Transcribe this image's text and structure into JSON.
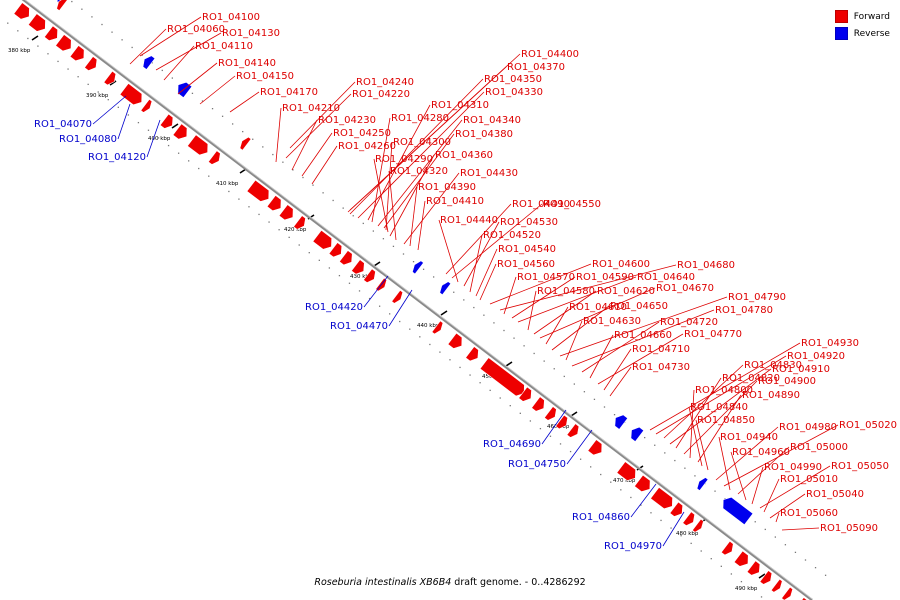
{
  "colors": {
    "forward": "#ee0000",
    "reverse": "#0000ee",
    "backbone": "#808080",
    "text_forward": "#dd0000",
    "text_reverse": "#0000cc"
  },
  "legend": [
    {
      "label": "Forward",
      "color": "#ee0000"
    },
    {
      "label": "Reverse",
      "color": "#0000ee"
    }
  ],
  "caption": {
    "organism": "Roseburia intestinalis XB6B4",
    "suffix": " draft genome. - 0..4286292"
  },
  "ticks": [
    "380 kbp",
    "390 kbp",
    "400 kbp",
    "410 kbp",
    "420 kbp",
    "430 kbp",
    "440 kbp",
    "450 kbp",
    "460 kbp",
    "470 kbp",
    "480 kbp",
    "490 kbp"
  ],
  "forward_genes": [
    "RO1_04100",
    "RO1_04060",
    "RO1_04130",
    "RO1_04110",
    "RO1_04140",
    "RO1_04150",
    "RO1_04170",
    "RO1_04240",
    "RO1_04220",
    "RO1_04210",
    "RO1_04230",
    "RO1_04250",
    "RO1_04260",
    "RO1_04400",
    "RO1_04370",
    "RO1_04350",
    "RO1_04330",
    "RO1_04310",
    "RO1_04280",
    "RO1_04340",
    "RO1_04380",
    "RO1_04300",
    "RO1_04290",
    "RO1_04360",
    "RO1_04320",
    "RO1_04430",
    "RO1_04390",
    "RO1_04410",
    "RO1_04490",
    "RO1_04550",
    "RO1_04440",
    "RO1_04530",
    "RO1_04520",
    "RO1_04540",
    "RO1_04560",
    "RO1_04600",
    "RO1_04680",
    "RO1_04570",
    "RO1_04590",
    "RO1_04640",
    "RO1_04580",
    "RO1_04620",
    "RO1_04670",
    "RO1_04610",
    "RO1_04650",
    "RO1_04790",
    "RO1_04630",
    "RO1_04780",
    "RO1_04720",
    "RO1_04660",
    "RO1_04770",
    "RO1_04710",
    "RO1_04730",
    "RO1_04930",
    "RO1_04920",
    "RO1_04830",
    "RO1_04910",
    "RO1_04820",
    "RO1_04900",
    "RO1_04800",
    "RO1_04890",
    "RO1_04840",
    "RO1_04850",
    "RO1_04980",
    "RO1_05020",
    "RO1_04940",
    "RO1_05000",
    "RO1_04960",
    "RO1_04990",
    "RO1_05050",
    "RO1_05010",
    "RO1_05040",
    "RO1_05060",
    "RO1_05090"
  ],
  "reverse_genes": [
    "RO1_04070",
    "RO1_04080",
    "RO1_04120",
    "RO1_04420",
    "RO1_04470",
    "RO1_04690",
    "RO1_04750",
    "RO1_04860",
    "RO1_04970"
  ]
}
